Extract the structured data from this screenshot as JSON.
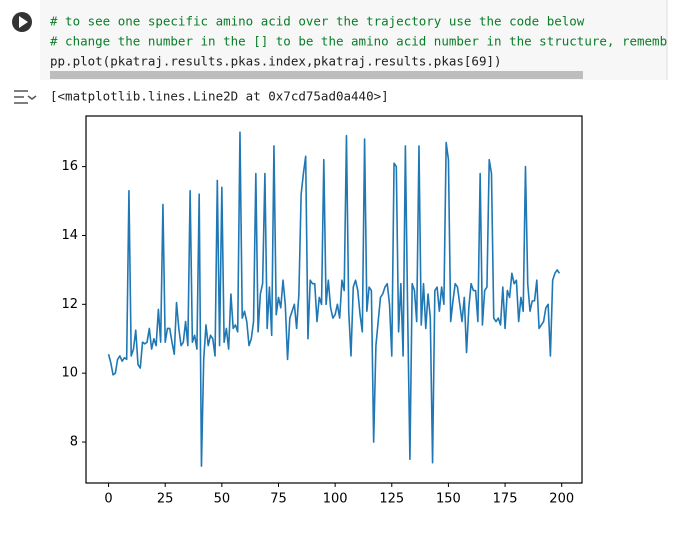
{
  "cell": {
    "code": [
      "# to see one specific amino acid over the trajectory use the code below",
      "# change the number in the [] to be the amino acid number in the structure, remembe",
      "pp.plot(pkatraj.results.pkas.index,pkatraj.results.pkas[69])"
    ],
    "output": "[<matplotlib.lines.Line2D at 0x7cd75ad0a440>]"
  },
  "chart_data": {
    "type": "line",
    "x": [
      0,
      1,
      2,
      3,
      4,
      5,
      6,
      7,
      8,
      9,
      10,
      11,
      12,
      13,
      14,
      15,
      16,
      17,
      18,
      19,
      20,
      21,
      22,
      23,
      24,
      25,
      26,
      27,
      28,
      29,
      30,
      31,
      32,
      33,
      34,
      35,
      36,
      37,
      38,
      39,
      40,
      41,
      42,
      43,
      44,
      45,
      46,
      47,
      48,
      49,
      50,
      51,
      52,
      53,
      54,
      55,
      56,
      57,
      58,
      59,
      60,
      61,
      62,
      63,
      64,
      65,
      66,
      67,
      68,
      69,
      70,
      71,
      72,
      73,
      74,
      75,
      76,
      77,
      78,
      79,
      80,
      81,
      82,
      83,
      84,
      85,
      86,
      87,
      88,
      89,
      90,
      91,
      92,
      93,
      94,
      95,
      96,
      97,
      98,
      99,
      100,
      101,
      102,
      103,
      104,
      105,
      106,
      107,
      108,
      109,
      110,
      111,
      112,
      113,
      114,
      115,
      116,
      117,
      118,
      119,
      120,
      121,
      122,
      123,
      124,
      125,
      126,
      127,
      128,
      129,
      130,
      131,
      132,
      133,
      134,
      135,
      136,
      137,
      138,
      139,
      140,
      141,
      142,
      143,
      144,
      145,
      146,
      147,
      148,
      149,
      150,
      151,
      152,
      153,
      154,
      155,
      156,
      157,
      158,
      159,
      160,
      161,
      162,
      163,
      164,
      165,
      166,
      167,
      168,
      169,
      170,
      171,
      172,
      173,
      174,
      175,
      176,
      177,
      178,
      179,
      180,
      181,
      182,
      183,
      184,
      185,
      186,
      187,
      188,
      189,
      190,
      191,
      192,
      193,
      194,
      195,
      196,
      197,
      198,
      199
    ],
    "series": [
      {
        "color": "#1f77b4",
        "values": [
          10.55,
          10.3,
          9.95,
          10.0,
          10.4,
          10.5,
          10.35,
          10.45,
          10.4,
          15.3,
          10.5,
          10.7,
          11.25,
          10.25,
          10.15,
          10.9,
          10.85,
          10.9,
          11.3,
          10.7,
          11.0,
          10.8,
          11.85,
          10.9,
          14.9,
          10.9,
          11.3,
          11.3,
          10.9,
          10.55,
          12.05,
          11.3,
          10.8,
          10.9,
          11.5,
          10.8,
          15.3,
          10.9,
          11.1,
          10.7,
          15.2,
          7.3,
          10.4,
          11.4,
          10.8,
          11.1,
          11.0,
          10.5,
          15.6,
          10.8,
          15.4,
          10.9,
          11.3,
          10.7,
          12.3,
          11.3,
          11.4,
          11.2,
          17.0,
          11.6,
          11.8,
          11.5,
          10.8,
          11.0,
          11.5,
          15.8,
          11.2,
          12.3,
          12.6,
          15.8,
          11.3,
          12.5,
          11.1,
          16.6,
          11.7,
          12.2,
          11.9,
          12.7,
          12.0,
          10.4,
          11.6,
          11.8,
          12.0,
          11.3,
          12.3,
          15.2,
          15.8,
          16.3,
          11.0,
          12.7,
          12.6,
          12.6,
          11.5,
          12.2,
          12.0,
          16.2,
          12.0,
          12.7,
          11.9,
          11.6,
          11.7,
          12.0,
          11.6,
          12.7,
          12.4,
          16.9,
          11.8,
          10.5,
          12.5,
          12.7,
          12.4,
          11.7,
          11.2,
          16.8,
          11.8,
          12.5,
          12.4,
          8.0,
          10.8,
          11.5,
          12.2,
          12.3,
          12.5,
          12.6,
          12.0,
          10.5,
          16.1,
          16.0,
          11.2,
          12.6,
          10.5,
          16.6,
          11.8,
          7.5,
          12.6,
          12.4,
          11.5,
          16.6,
          11.4,
          12.6,
          11.3,
          12.3,
          11.6,
          7.4,
          12.4,
          12.5,
          11.8,
          12.5,
          12.0,
          16.7,
          16.2,
          11.5,
          12.1,
          12.6,
          12.5,
          12.0,
          11.5,
          12.2,
          10.6,
          11.9,
          12.6,
          12.4,
          12.4,
          11.5,
          15.8,
          11.4,
          12.4,
          12.5,
          16.2,
          15.8,
          11.6,
          11.5,
          11.6,
          11.4,
          12.5,
          11.3,
          12.4,
          12.2,
          12.9,
          12.6,
          12.7,
          11.5,
          12.2,
          11.8,
          16.0,
          12.6,
          11.8,
          12.1,
          12.1,
          12.7,
          11.3,
          11.4,
          11.5,
          11.9,
          12.0,
          10.5,
          12.7,
          12.9,
          13.0,
          12.9
        ]
      }
    ],
    "xlim": [
      -9.95,
      208.95
    ],
    "ylim": [
      6.81,
      17.47
    ],
    "xticks": [
      0,
      25,
      50,
      75,
      100,
      125,
      150,
      175,
      200
    ],
    "yticks": [
      8,
      10,
      12,
      14,
      16
    ]
  }
}
